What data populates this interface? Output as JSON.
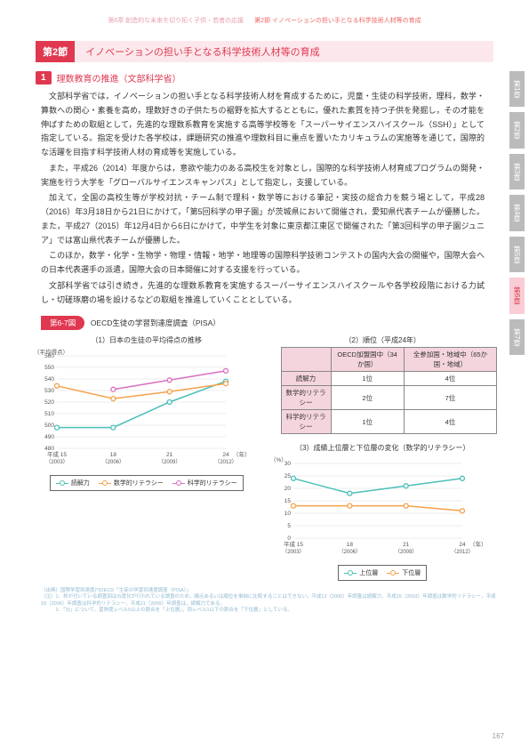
{
  "header": {
    "left": "第6章 創造的な未来を切り拓く子供・若者の応援",
    "right": "第2節 イノベーションの担い手となる科学技術人材等の育成"
  },
  "section": {
    "label": "第2節",
    "title": "イノベーションの担い手となる科学技術人材等の育成"
  },
  "sub1": {
    "num": "1",
    "title": "理数教育の推進（文部科学省）"
  },
  "paragraphs": [
    "文部科学省では，イノベーションの担い手となる科学技術人材を育成するために，児童・生徒の科学技術，理科，数学・算数への関心・素養を高め，理数好きの子供たちの裾野を拡大するとともに，優れた素質を持つ子供を発掘し，その才能を伸ばすための取組として，先進的な理数系教育を実施する高等学校等を「スーパーサイエンスハイスクール（SSH）」として指定している。指定を受けた各学校は，課題研究の推進や理数科目に重点を置いたカリキュラムの実施等を通じて，国際的な活躍を目指す科学技術人材の育成等を実施している。",
    "また，平成26（2014）年度からは，意欲や能力のある高校生を対象とし，国際的な科学技術人材育成プログラムの開発・実施を行う大学を「グローバルサイエンスキャンパス」として指定し，支援している。",
    "加えて，全国の高校生等が学校対抗・チーム制で理科・数学等における筆記・実技の総合力を競う場として，平成28（2016）年3月18日から21日にかけて，「第5回科学の甲子園」が茨城県において開催され，愛知県代表チームが優勝した。また，平成27（2015）年12月4日から6日にかけて，中学生を対象に東京都江東区で開催された「第3回科学の甲子園ジュニア」では富山県代表チームが優勝した。",
    "このほか，数学・化学・生物学・物理・情報・地学・地理等の国際科学技術コンテストの国内大会の開催や，国際大会への日本代表選手の派遣，国際大会の日本開催に対する支援を行っている。",
    "文部科学省では引き続き，先進的な理数系教育を実施するスーパーサイエンスハイスクールや各学校段階における力試し・切磋琢磨の場を設けるなどの取組を推進していくこととしている。"
  ],
  "figure": {
    "label": "第6-7図",
    "title": "OECD生徒の学習到達度調査（PISA）"
  },
  "chart1": {
    "caption": "（1）日本の生徒の平均得点の推移",
    "type": "line",
    "ylabel": "（平均得点）",
    "ylim": [
      480,
      560
    ],
    "ytick_step": 10,
    "categories": [
      "平成 15",
      "18",
      "21",
      "24"
    ],
    "categories_sub": [
      "（2003）",
      "（2006）",
      "（2009）",
      "（2012）"
    ],
    "xright": "（年）",
    "series": [
      {
        "name": "読解力",
        "color": "#4bbfb8",
        "marker": "circle",
        "values": [
          498,
          498,
          520,
          538
        ]
      },
      {
        "name": "数学的リテラシー",
        "color": "#f5a14a",
        "marker": "circle",
        "values": [
          534,
          523,
          529,
          536
        ]
      },
      {
        "name": "科学的リテラシー",
        "color": "#d96fc1",
        "marker": "circle",
        "values": [
          null,
          531,
          539,
          547
        ]
      }
    ],
    "background_color": "#ffffff",
    "grid_color": "#dddddd",
    "label_fontsize": 7
  },
  "table2": {
    "caption": "（2）順位（平成24年）",
    "columns": [
      "",
      "OECD加盟国中（34か国）",
      "全参加国・地域中（65か国・地域）"
    ],
    "rows": [
      [
        "読解力",
        "1位",
        "4位"
      ],
      [
        "数学的リテラシー",
        "2位",
        "7位"
      ],
      [
        "科学的リテラシー",
        "1位",
        "4位"
      ]
    ],
    "header_bg": "#f5d5dd"
  },
  "chart3": {
    "caption": "（3）成績上位層と下位層の変化（数学的リテラシー）",
    "type": "line",
    "ylabel": "（%）",
    "ylim": [
      0,
      30
    ],
    "ytick_step": 5,
    "categories": [
      "平成 15",
      "18",
      "21",
      "24"
    ],
    "categories_sub": [
      "（2003）",
      "（2006）",
      "（2009）",
      "（2012）"
    ],
    "xright": "（年）",
    "series": [
      {
        "name": "上位層",
        "color": "#4bbfb8",
        "marker": "circle",
        "values": [
          24,
          18,
          21,
          24
        ]
      },
      {
        "name": "下位層",
        "color": "#f5a14a",
        "marker": "circle",
        "values": [
          13,
          13,
          13,
          11
        ]
      }
    ],
    "background_color": "#ffffff",
    "grid_color": "#dddddd"
  },
  "footnotes": [
    "（出典）国際学習到達度(*)OECD「生徒の学習到達度調査（PISA）」",
    "（注）1．枠が付いている調査回はIS度化が行われている調査のため，線点あるいは順位を単純に比較することはできない。平成12（2000）年調査は読解力，平成15（2003）年調査は数学的リテラシー，平成18（2006）年調査は科学的リテラシー，平成21（2009）年調査は，読解力である。",
    "　　　2．「3)」について，習熟度レベル5以上の割合を「上位層」，同レベル1以下の割合を「下位層」としている。"
  ],
  "sidebar": [
    "第1章",
    "第2章",
    "第3章",
    "第4章",
    "第5章",
    "第6章",
    "第7章"
  ],
  "sidebar_active_index": 5,
  "page_number": "167",
  "colors": {
    "accent": "#e03850",
    "accent_light": "#fce8ec"
  }
}
